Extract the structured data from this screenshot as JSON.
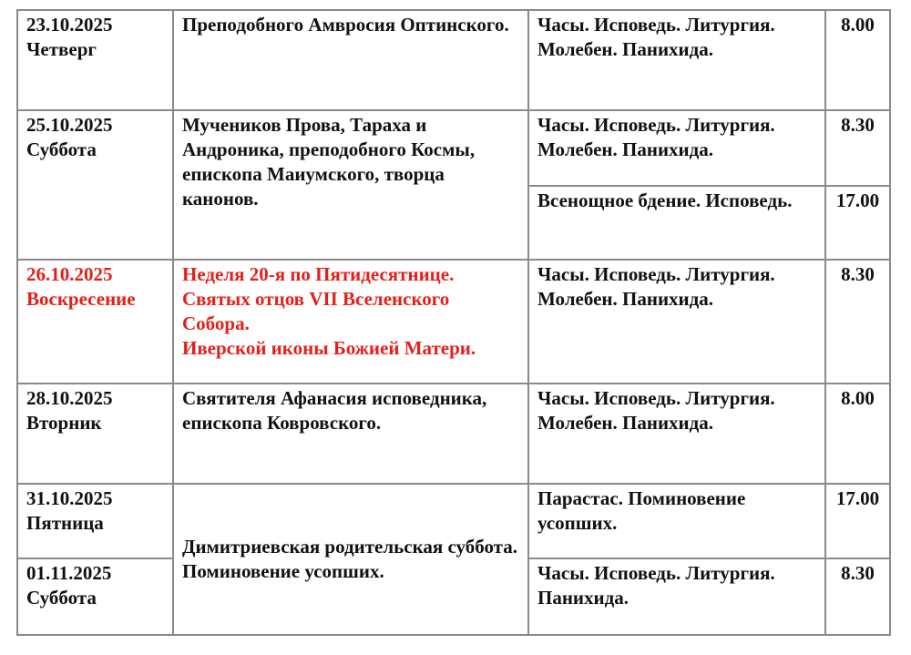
{
  "accent_color": "#e3201b",
  "rows": [
    {
      "date": "23.10.2025",
      "weekday": "Четверг",
      "description": "Преподобного Амвросия Оптинского.",
      "services": [
        {
          "text": "Часы. Исповедь. Литургия. Молебен. Панихида.",
          "time": "8.00"
        }
      ]
    },
    {
      "date": "25.10.2025",
      "weekday": "Суббота",
      "description": "Мучеников Прова, Тараха и Андроника, преподобного Космы, епископа Маиумского, творца канонов.",
      "services": [
        {
          "text": "Часы. Исповедь. Литургия. Молебен. Панихида.",
          "time": "8.30"
        },
        {
          "text": "Всенощное бдение. Исповедь.",
          "time": "17.00"
        }
      ]
    },
    {
      "date": "26.10.2025",
      "weekday": "Воскресение",
      "highlight": true,
      "description_lines": [
        "Неделя 20-я по Пятидесятнице.",
        "Святых отцов VII Вселенского Собора.",
        "Иверской иконы Божией Матери."
      ],
      "services": [
        {
          "text": "Часы. Исповедь. Литургия. Молебен. Панихида.",
          "time": "8.30"
        }
      ]
    },
    {
      "date": "28.10.2025",
      "weekday": "Вторник",
      "description": "Святителя Афанасия исповедника, епископа Ковровского.",
      "services": [
        {
          "text": "Часы. Исповедь. Литургия. Молебен. Панихида.",
          "time": "8.00"
        }
      ]
    },
    {
      "date": "31.10.2025",
      "weekday": "Пятница",
      "services": [
        {
          "text": "Парастас. Поминовение усопших.",
          "time": "17.00"
        }
      ]
    },
    {
      "date": "01.11.2025",
      "weekday": "Суббота",
      "services": [
        {
          "text": "Часы. Исповедь. Литургия. Панихида.",
          "time": "8.30"
        }
      ]
    }
  ],
  "shared_description": "Димитриевская родительская суббота. Поминовение усопших."
}
